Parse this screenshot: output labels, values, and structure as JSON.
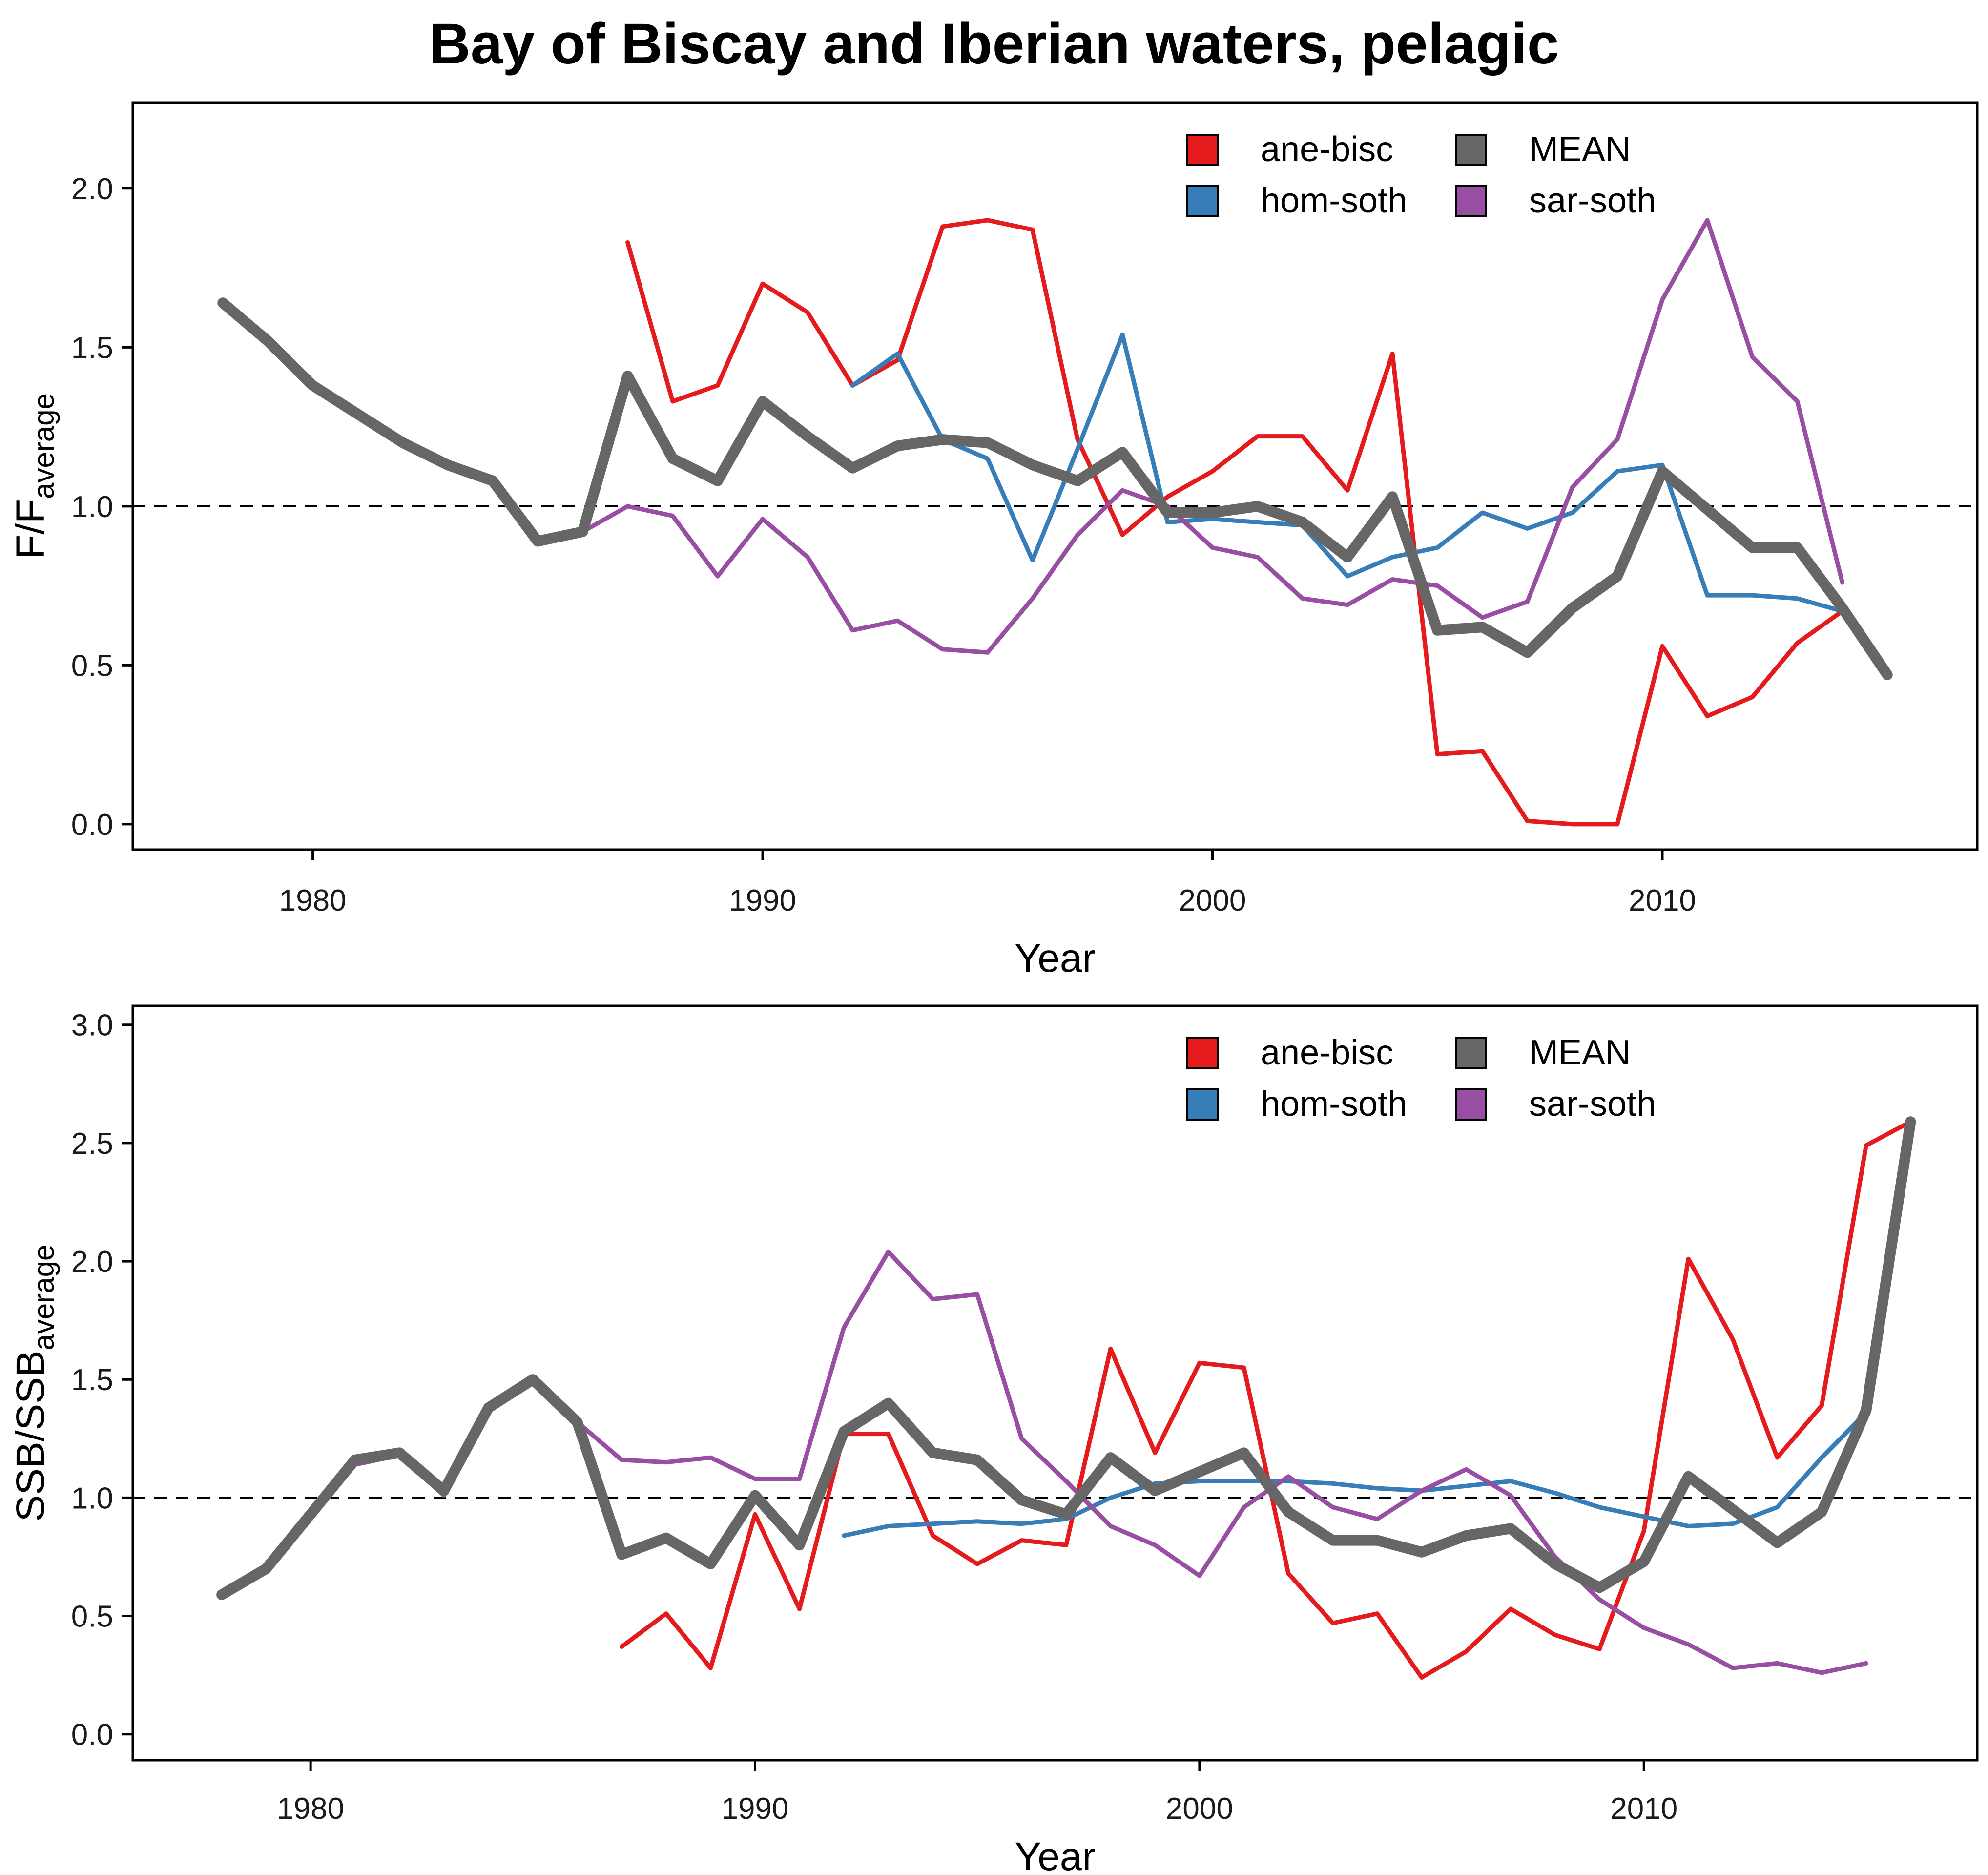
{
  "figure_title": "Bay of Biscay and Iberian waters, pelagic",
  "chart_data": [
    {
      "type": "line",
      "xlabel": "Year",
      "ylabel": "F/F",
      "ylabel_subscript": "average",
      "xlim": [
        1976,
        2017
      ],
      "ylim": [
        -0.08,
        2.27
      ],
      "xticks": [
        1980,
        1990,
        2000,
        2010
      ],
      "yticks": [
        0.0,
        0.5,
        1.0,
        1.5,
        2.0
      ],
      "ytick_labels": [
        "0.0",
        "0.5",
        "1.0",
        "1.5",
        "2.0"
      ],
      "reference_line": 1.0,
      "legend_position": "top-right",
      "series": [
        {
          "name": "ane-bisc",
          "color": "#e41a1c",
          "width": "thin",
          "x": [
            1987,
            1988,
            1989,
            1990,
            1991,
            1992,
            1993,
            1994,
            1995,
            1996,
            1997,
            1998,
            1999,
            2000,
            2001,
            2002,
            2003,
            2004,
            2005,
            2006,
            2007,
            2008,
            2009,
            2010,
            2011,
            2012,
            2013,
            2014,
            2015
          ],
          "y": [
            1.83,
            1.33,
            1.38,
            1.7,
            1.61,
            1.38,
            1.46,
            1.88,
            1.9,
            1.87,
            1.21,
            0.91,
            1.03,
            1.11,
            1.22,
            1.22,
            1.05,
            1.48,
            0.22,
            0.23,
            0.01,
            0.0,
            0.0,
            0.56,
            0.34,
            0.4,
            0.57,
            0.67,
            0.47
          ]
        },
        {
          "name": "hom-soth",
          "color": "#377eb8",
          "width": "thin",
          "x": [
            1992,
            1993,
            1994,
            1995,
            1996,
            1997,
            1998,
            1999,
            2000,
            2001,
            2002,
            2003,
            2004,
            2005,
            2006,
            2007,
            2008,
            2009,
            2010,
            2011,
            2012,
            2013,
            2014
          ],
          "y": [
            1.38,
            1.48,
            1.21,
            1.15,
            0.83,
            1.18,
            1.54,
            0.95,
            0.96,
            0.95,
            0.94,
            0.78,
            0.84,
            0.87,
            0.98,
            0.93,
            0.98,
            1.11,
            1.13,
            0.72,
            0.72,
            0.71,
            0.67
          ]
        },
        {
          "name": "sar-soth",
          "color": "#984ea3",
          "width": "thin",
          "x": [
            1978,
            1979,
            1980,
            1981,
            1982,
            1983,
            1984,
            1985,
            1986,
            1987,
            1988,
            1989,
            1990,
            1991,
            1992,
            1993,
            1994,
            1995,
            1996,
            1997,
            1998,
            1999,
            2000,
            2001,
            2002,
            2003,
            2004,
            2005,
            2006,
            2007,
            2008,
            2009,
            2010,
            2011,
            2012,
            2013,
            2014
          ],
          "y": [
            1.63,
            1.51,
            1.38,
            1.29,
            1.2,
            1.13,
            1.07,
            0.89,
            0.92,
            1.0,
            0.97,
            0.78,
            0.96,
            0.84,
            0.61,
            0.64,
            0.55,
            0.54,
            0.71,
            0.91,
            1.05,
            1.0,
            0.87,
            0.84,
            0.71,
            0.69,
            0.77,
            0.75,
            0.65,
            0.7,
            1.06,
            1.21,
            1.65,
            1.9,
            1.47,
            1.33,
            0.76
          ]
        },
        {
          "name": "MEAN",
          "color": "#666666",
          "width": "thick",
          "x": [
            1978,
            1979,
            1980,
            1981,
            1982,
            1983,
            1984,
            1985,
            1986,
            1987,
            1988,
            1989,
            1990,
            1991,
            1992,
            1993,
            1994,
            1995,
            1996,
            1997,
            1998,
            1999,
            2000,
            2001,
            2002,
            2003,
            2004,
            2005,
            2006,
            2007,
            2008,
            2009,
            2010,
            2011,
            2012,
            2013,
            2014,
            2015
          ],
          "y": [
            1.64,
            1.52,
            1.38,
            1.29,
            1.2,
            1.13,
            1.08,
            0.89,
            0.92,
            1.41,
            1.15,
            1.08,
            1.33,
            1.22,
            1.12,
            1.19,
            1.21,
            1.2,
            1.13,
            1.08,
            1.17,
            0.98,
            0.98,
            1.0,
            0.95,
            0.84,
            1.03,
            0.61,
            0.62,
            0.54,
            0.68,
            0.78,
            1.11,
            0.99,
            0.87,
            0.87,
            0.68,
            0.47
          ]
        }
      ]
    },
    {
      "type": "line",
      "xlabel": "Year",
      "ylabel": "SSB/SSB",
      "ylabel_subscript": "average",
      "xlim": [
        1976,
        2017.5
      ],
      "ylim": [
        -0.11,
        3.08
      ],
      "xticks": [
        1980,
        1990,
        2000,
        2010
      ],
      "yticks": [
        0.0,
        0.5,
        1.0,
        1.5,
        2.0,
        2.5,
        3.0
      ],
      "ytick_labels": [
        "0.0",
        "0.5",
        "1.0",
        "1.5",
        "2.0",
        "2.5",
        "3.0"
      ],
      "reference_line": 1.0,
      "legend_position": "top-right",
      "series": [
        {
          "name": "ane-bisc",
          "color": "#e41a1c",
          "width": "thin",
          "x": [
            1987,
            1988,
            1989,
            1990,
            1991,
            1992,
            1993,
            1994,
            1995,
            1996,
            1997,
            1998,
            1999,
            2000,
            2001,
            2002,
            2003,
            2004,
            2005,
            2006,
            2007,
            2008,
            2009,
            2010,
            2011,
            2012,
            2013,
            2014,
            2015,
            2016
          ],
          "y": [
            0.37,
            0.51,
            0.28,
            0.93,
            0.53,
            1.27,
            1.27,
            0.84,
            0.72,
            0.82,
            0.8,
            1.63,
            1.19,
            1.57,
            1.55,
            0.68,
            0.47,
            0.51,
            0.24,
            0.35,
            0.53,
            0.42,
            0.36,
            0.86,
            2.01,
            1.67,
            1.17,
            1.39,
            2.49,
            2.59
          ]
        },
        {
          "name": "hom-soth",
          "color": "#377eb8",
          "width": "thin",
          "x": [
            1992,
            1993,
            1994,
            1995,
            1996,
            1997,
            1998,
            1999,
            2000,
            2001,
            2002,
            2003,
            2004,
            2005,
            2006,
            2007,
            2008,
            2009,
            2010,
            2011,
            2012,
            2013,
            2014,
            2015
          ],
          "y": [
            0.84,
            0.88,
            0.89,
            0.9,
            0.89,
            0.91,
            1.0,
            1.06,
            1.07,
            1.07,
            1.07,
            1.06,
            1.04,
            1.03,
            1.05,
            1.07,
            1.02,
            0.96,
            0.92,
            0.88,
            0.89,
            0.96,
            1.17,
            1.36
          ]
        },
        {
          "name": "sar-soth",
          "color": "#984ea3",
          "width": "thin",
          "x": [
            1978,
            1979,
            1980,
            1981,
            1982,
            1983,
            1984,
            1985,
            1986,
            1987,
            1988,
            1989,
            1990,
            1991,
            1992,
            1993,
            1994,
            1995,
            1996,
            1997,
            1998,
            1999,
            2000,
            2001,
            2002,
            2003,
            2004,
            2005,
            2006,
            2007,
            2008,
            2009,
            2010,
            2011,
            2012,
            2013,
            2014,
            2015
          ],
          "y": [
            0.58,
            0.69,
            0.91,
            1.14,
            1.18,
            1.01,
            1.37,
            1.49,
            1.32,
            1.16,
            1.15,
            1.17,
            1.08,
            1.08,
            1.72,
            2.04,
            1.84,
            1.86,
            1.25,
            1.07,
            0.88,
            0.8,
            0.67,
            0.96,
            1.09,
            0.96,
            0.91,
            1.03,
            1.12,
            1.01,
            0.75,
            0.57,
            0.45,
            0.38,
            0.28,
            0.3,
            0.26,
            0.3
          ]
        },
        {
          "name": "MEAN",
          "color": "#666666",
          "width": "thick",
          "x": [
            1978,
            1979,
            1980,
            1981,
            1982,
            1983,
            1984,
            1985,
            1986,
            1987,
            1988,
            1989,
            1990,
            1991,
            1992,
            1993,
            1994,
            1995,
            1996,
            1997,
            1998,
            1999,
            2000,
            2001,
            2002,
            2003,
            2004,
            2005,
            2006,
            2007,
            2008,
            2009,
            2010,
            2011,
            2012,
            2013,
            2014,
            2015,
            2016
          ],
          "y": [
            0.59,
            0.7,
            0.93,
            1.16,
            1.19,
            1.03,
            1.38,
            1.5,
            1.32,
            0.76,
            0.83,
            0.72,
            1.01,
            0.8,
            1.28,
            1.4,
            1.19,
            1.16,
            0.99,
            0.93,
            1.17,
            1.03,
            1.11,
            1.19,
            0.94,
            0.82,
            0.82,
            0.77,
            0.84,
            0.87,
            0.72,
            0.62,
            0.73,
            1.09,
            0.95,
            0.81,
            0.94,
            1.37,
            2.59
          ]
        }
      ]
    }
  ]
}
